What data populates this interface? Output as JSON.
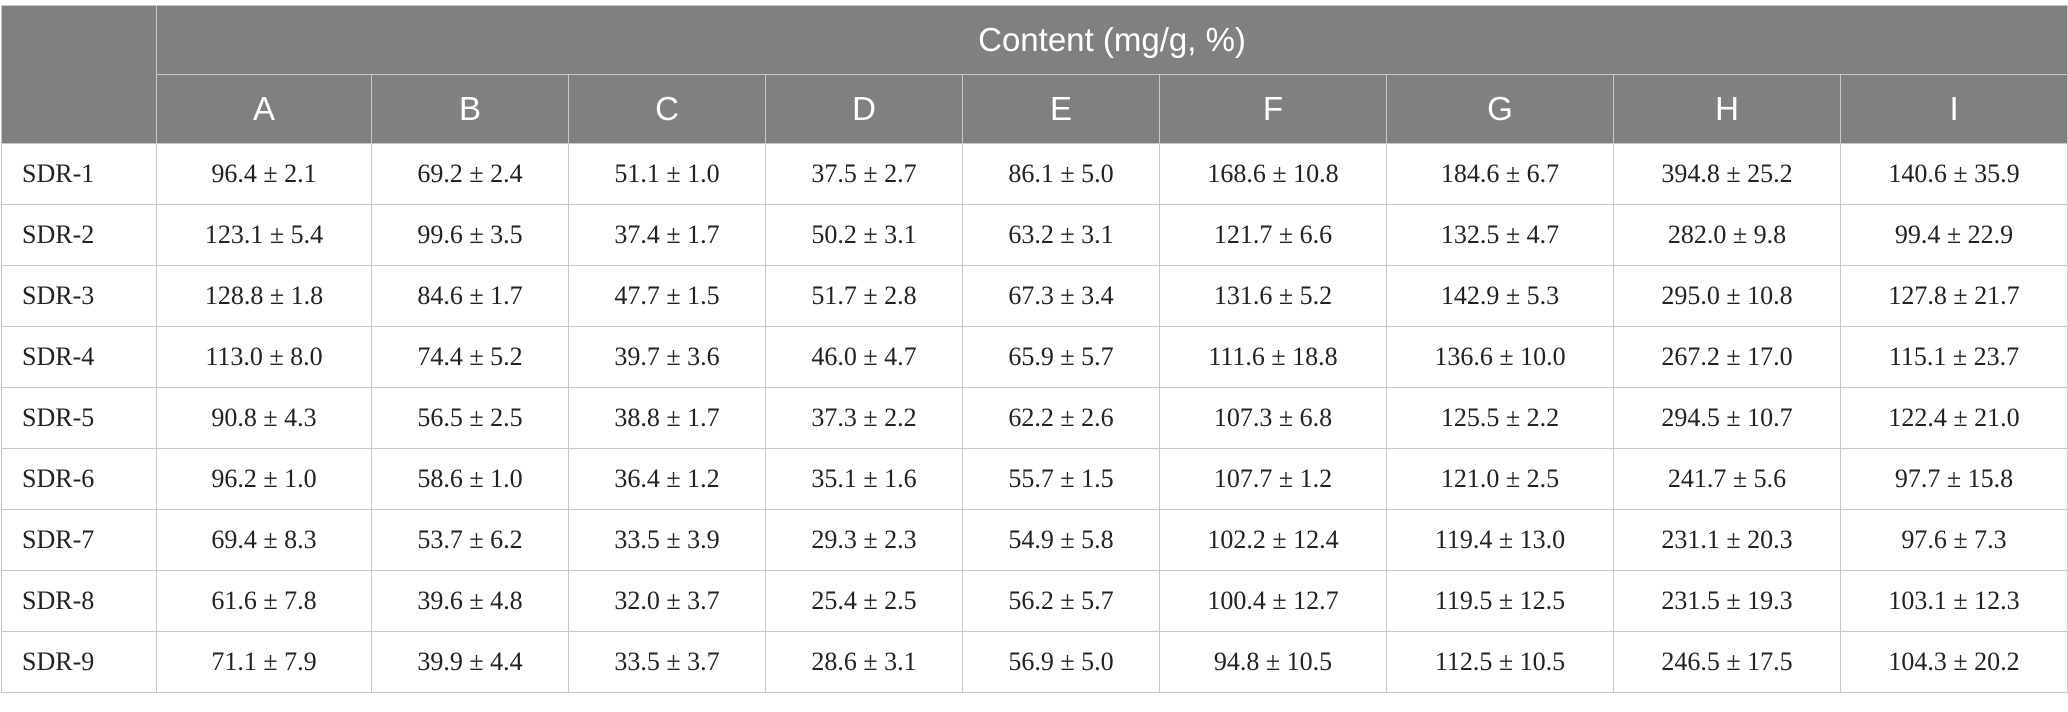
{
  "table": {
    "group_header": "Content (mg/g, %)",
    "corner_header": "",
    "columns": [
      "A",
      "B",
      "C",
      "D",
      "E",
      "F",
      "G",
      "H",
      "I"
    ],
    "rows": [
      {
        "sample": "SDR-1",
        "values": [
          "96.4 ± 2.1",
          "69.2 ± 2.4",
          "51.1 ± 1.0",
          "37.5 ± 2.7",
          "86.1 ± 5.0",
          "168.6 ± 10.8",
          "184.6 ± 6.7",
          "394.8 ± 25.2",
          "140.6 ± 35.9"
        ]
      },
      {
        "sample": "SDR-2",
        "values": [
          "123.1 ± 5.4",
          "99.6 ± 3.5",
          "37.4 ± 1.7",
          "50.2 ± 3.1",
          "63.2 ± 3.1",
          "121.7 ± 6.6",
          "132.5 ± 4.7",
          "282.0 ± 9.8",
          "99.4 ± 22.9"
        ]
      },
      {
        "sample": "SDR-3",
        "values": [
          "128.8 ± 1.8",
          "84.6 ± 1.7",
          "47.7 ± 1.5",
          "51.7 ± 2.8",
          "67.3 ± 3.4",
          "131.6 ± 5.2",
          "142.9 ± 5.3",
          "295.0 ± 10.8",
          "127.8 ± 21.7"
        ]
      },
      {
        "sample": "SDR-4",
        "values": [
          "113.0 ± 8.0",
          "74.4 ± 5.2",
          "39.7 ± 3.6",
          "46.0 ± 4.7",
          "65.9 ± 5.7",
          "111.6 ± 18.8",
          "136.6 ± 10.0",
          "267.2 ± 17.0",
          "115.1 ± 23.7"
        ]
      },
      {
        "sample": "SDR-5",
        "values": [
          "90.8 ± 4.3",
          "56.5 ± 2.5",
          "38.8 ± 1.7",
          "37.3 ± 2.2",
          "62.2 ± 2.6",
          "107.3 ± 6.8",
          "125.5 ± 2.2",
          "294.5 ± 10.7",
          "122.4 ± 21.0"
        ]
      },
      {
        "sample": "SDR-6",
        "values": [
          "96.2 ± 1.0",
          "58.6 ± 1.0",
          "36.4 ± 1.2",
          "35.1 ± 1.6",
          "55.7 ± 1.5",
          "107.7 ± 1.2",
          "121.0 ± 2.5",
          "241.7 ± 5.6",
          "97.7 ± 15.8"
        ]
      },
      {
        "sample": "SDR-7",
        "values": [
          "69.4 ± 8.3",
          "53.7 ± 6.2",
          "33.5 ± 3.9",
          "29.3 ± 2.3",
          "54.9 ± 5.8",
          "102.2 ± 12.4",
          "119.4 ± 13.0",
          "231.1 ± 20.3",
          "97.6 ± 7.3"
        ]
      },
      {
        "sample": "SDR-8",
        "values": [
          "61.6 ± 7.8",
          "39.6 ± 4.8",
          "32.0 ± 3.7",
          "25.4 ± 2.5",
          "56.2 ± 5.7",
          "100.4 ± 12.7",
          "119.5 ± 12.5",
          "231.5 ± 19.3",
          "103.1 ± 12.3"
        ]
      },
      {
        "sample": "SDR-9",
        "values": [
          "71.1 ± 7.9",
          "39.9 ± 4.4",
          "33.5 ± 3.7",
          "28.6 ± 3.1",
          "56.9 ± 5.0",
          "94.8 ± 10.5",
          "112.5 ± 10.5",
          "246.5 ± 17.5",
          "104.3 ± 20.2"
        ]
      }
    ],
    "colors": {
      "header_bg": "#808080",
      "header_text": "#ffffff",
      "border": "#c8c8c8",
      "body_text": "#222222"
    }
  }
}
